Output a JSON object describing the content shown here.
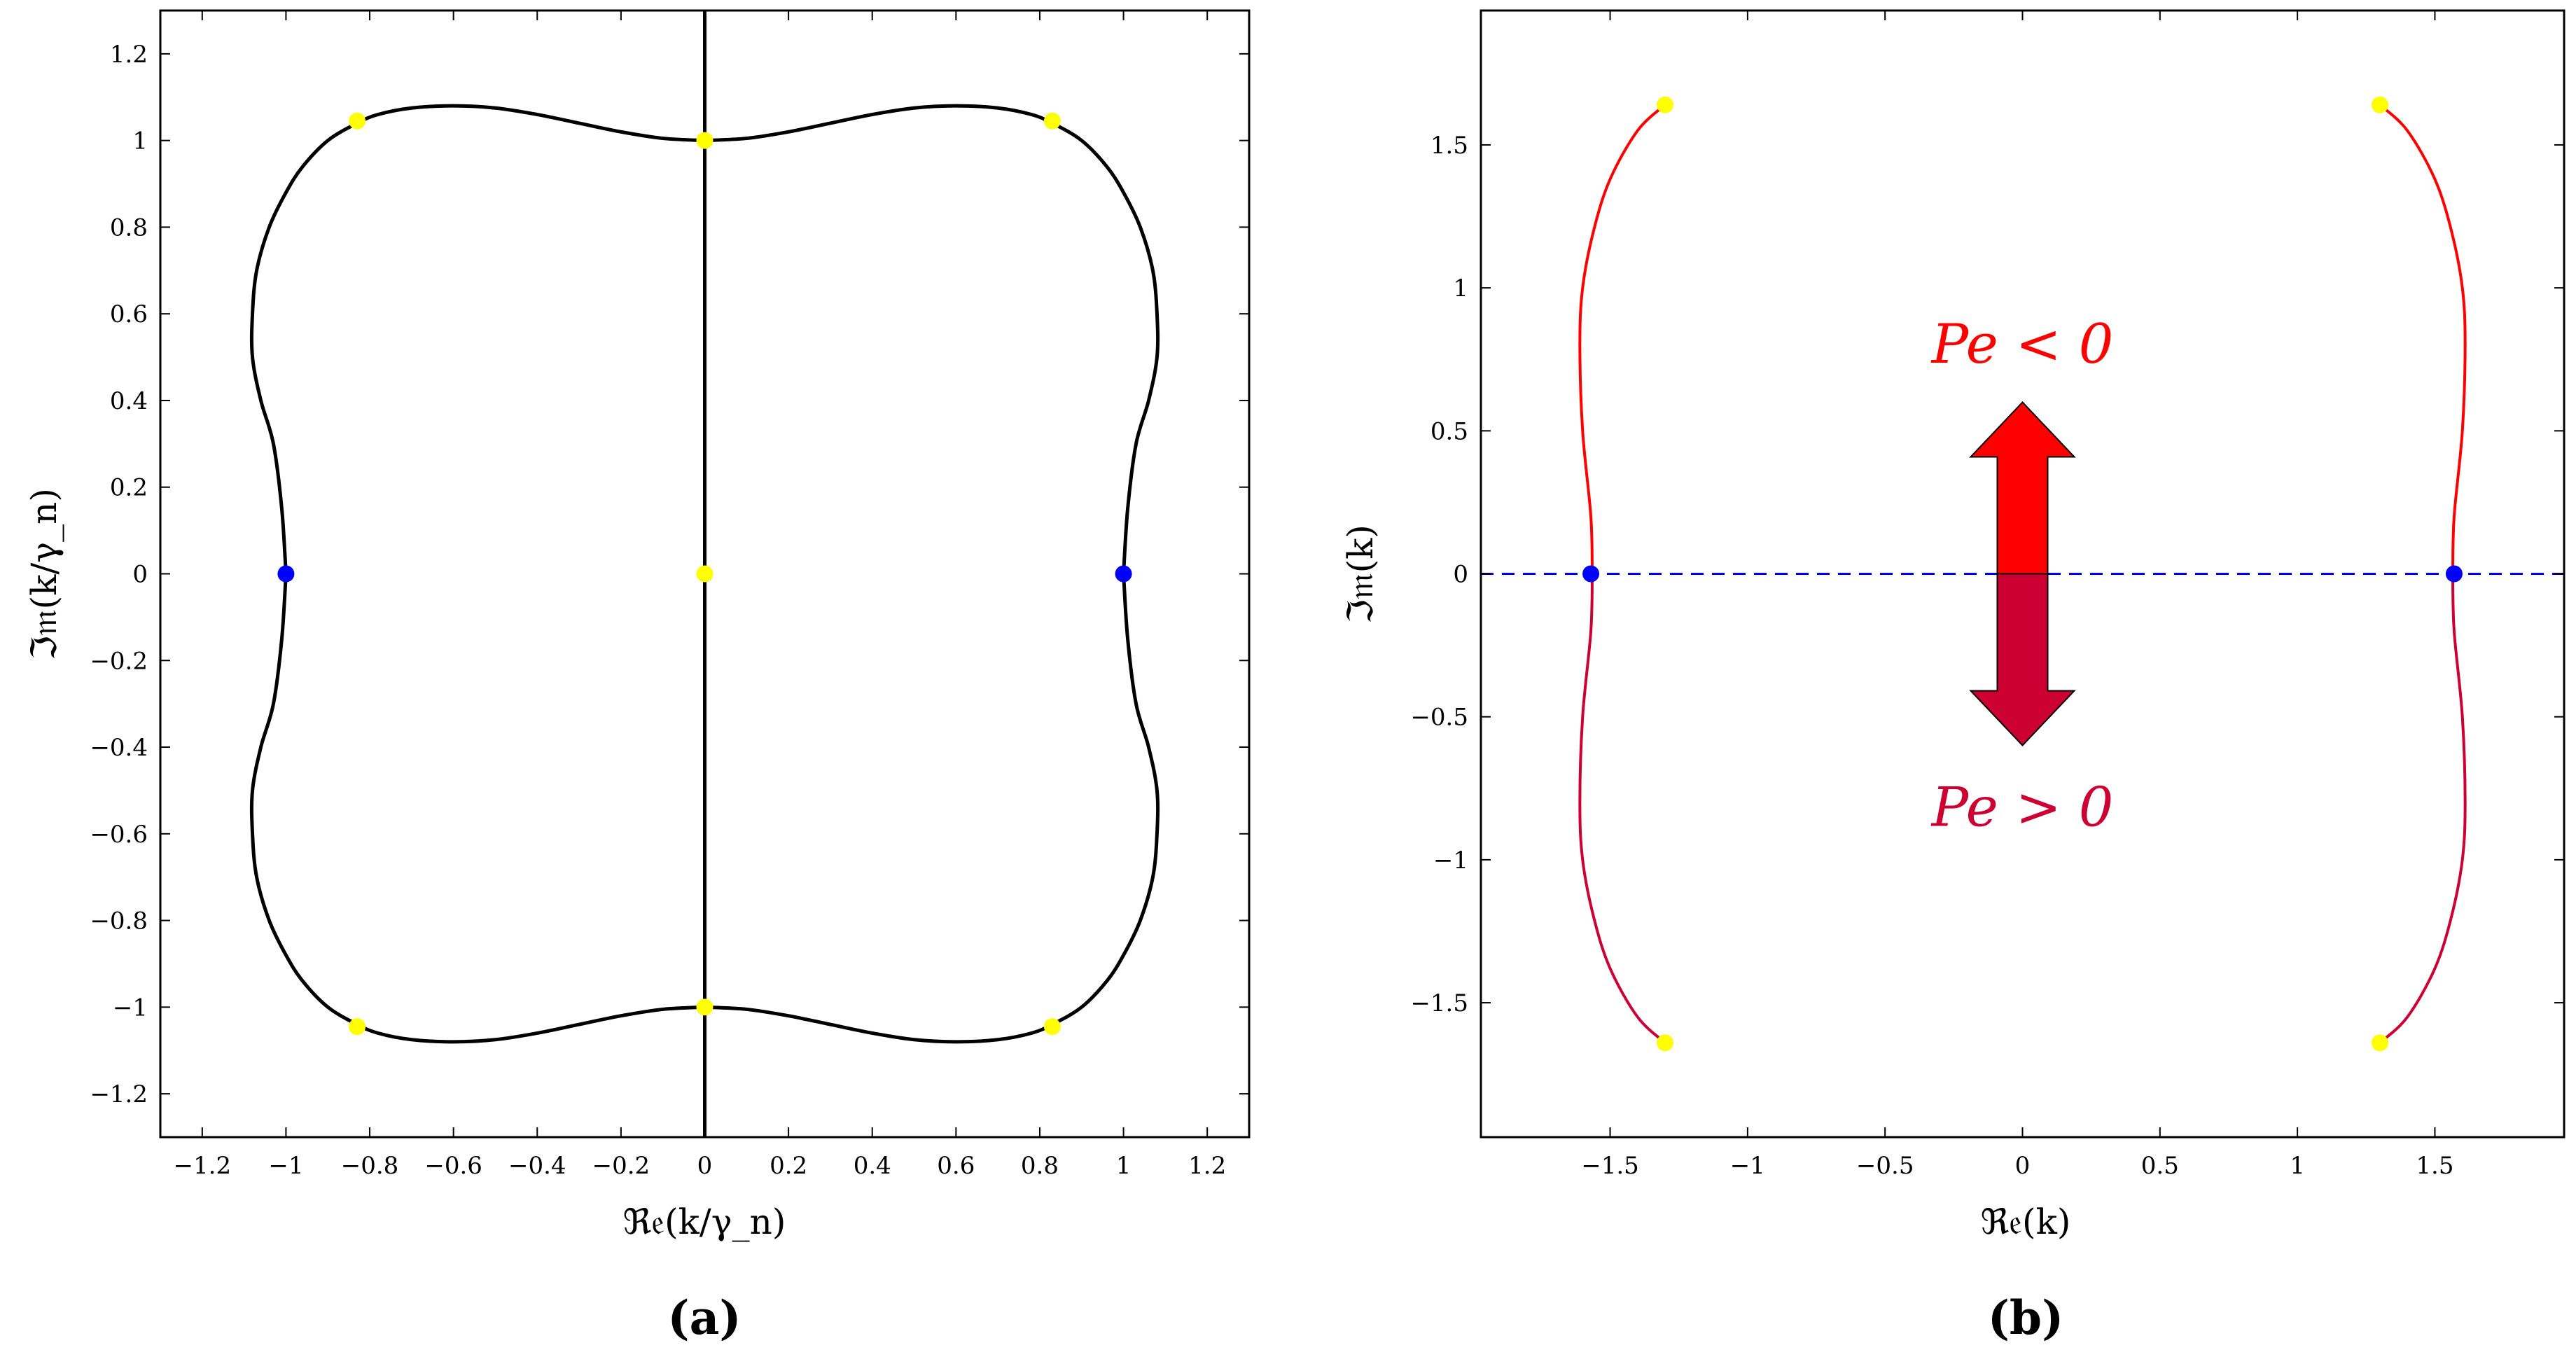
{
  "chart_data": [
    {
      "type": "line",
      "panel": "(a)",
      "xlabel": "ℜ𝔢(k/γ_n)",
      "ylabel": "ℑ𝔪(k/γ_n)",
      "xlim": [
        -1.3,
        1.3
      ],
      "ylim": [
        -1.3,
        1.3
      ],
      "xticks": [
        -1.2,
        -1,
        -0.8,
        -0.6,
        -0.4,
        -0.2,
        0,
        0.2,
        0.4,
        0.6,
        0.8,
        1,
        1.2
      ],
      "xtick_labels": [
        "−1.2",
        "−1",
        "−0.8",
        "−0.6",
        "−0.4",
        "−0.2",
        "0",
        "0.2",
        "0.4",
        "0.6",
        "0.8",
        "1",
        "1.2"
      ],
      "yticks": [
        1.2,
        1,
        0.8,
        0.6,
        0.4,
        0.2,
        0,
        -0.2,
        -0.4,
        -0.6,
        -0.8,
        -1,
        -1.2
      ],
      "ytick_labels": [
        "1.2",
        "1",
        "0.8",
        "0.6",
        "0.4",
        "0.2",
        "0",
        "−0.2",
        "−0.4",
        "−0.6",
        "−0.8",
        "−1",
        "−1.2"
      ],
      "series": [
        {
          "name": "closed-curve-upper-right",
          "color": "#000000",
          "x": [
            0,
            0.1,
            0.2,
            0.3,
            0.4,
            0.5,
            0.6,
            0.7,
            0.78,
            0.83,
            0.9,
            0.96,
            1.0,
            1.04,
            1.07,
            1.08,
            1.08,
            1.06,
            1.03,
            1.01,
            1.0
          ],
          "y": [
            1.0,
            1.005,
            1.02,
            1.04,
            1.06,
            1.075,
            1.08,
            1.075,
            1.06,
            1.04,
            1.0,
            0.94,
            0.88,
            0.8,
            0.7,
            0.6,
            0.5,
            0.4,
            0.3,
            0.15,
            0.0
          ]
        },
        {
          "name": "imaginary-axis-line",
          "color": "#000000",
          "x": [
            0,
            0
          ],
          "y": [
            -1.3,
            1.3
          ]
        }
      ],
      "points": [
        {
          "x": -1,
          "y": 0,
          "color": "#0000ff"
        },
        {
          "x": 1,
          "y": 0,
          "color": "#0000ff"
        },
        {
          "x": 0,
          "y": 0,
          "color": "#ffff00"
        },
        {
          "x": 0,
          "y": 1,
          "color": "#ffff00"
        },
        {
          "x": 0,
          "y": -1,
          "color": "#ffff00"
        },
        {
          "x": -0.83,
          "y": 1.045,
          "color": "#ffff00"
        },
        {
          "x": 0.83,
          "y": 1.045,
          "color": "#ffff00"
        },
        {
          "x": -0.83,
          "y": -1.045,
          "color": "#ffff00"
        },
        {
          "x": 0.83,
          "y": -1.045,
          "color": "#ffff00"
        }
      ]
    },
    {
      "type": "line",
      "panel": "(b)",
      "xlabel": "ℜ𝔢(k)",
      "ylabel": "ℑ𝔪(k)",
      "xlim": [
        -1.97,
        1.97
      ],
      "ylim": [
        -1.97,
        1.97
      ],
      "xticks": [
        -1.5,
        -1,
        -0.5,
        0,
        0.5,
        1,
        1.5
      ],
      "xtick_labels": [
        "−1.5",
        "−1",
        "−0.5",
        "0",
        "0.5",
        "1",
        "1.5"
      ],
      "yticks": [
        1.5,
        1,
        0.5,
        0,
        -0.5,
        -1,
        -1.5
      ],
      "ytick_labels": [
        "1.5",
        "1",
        "0.5",
        "0",
        "−0.5",
        "−1",
        "−1.5"
      ],
      "series": [
        {
          "name": "upper-branch",
          "color": "#ff0000",
          "x": [
            1.3,
            1.4,
            1.5,
            1.56,
            1.6,
            1.61,
            1.6,
            1.57,
            1.565
          ],
          "y": [
            1.64,
            1.55,
            1.38,
            1.2,
            1.0,
            0.8,
            0.5,
            0.2,
            0.0
          ]
        },
        {
          "name": "lower-branch",
          "color": "#cc0033",
          "x": [
            1.565,
            1.57,
            1.6,
            1.61,
            1.6,
            1.56,
            1.5,
            1.4,
            1.3
          ],
          "y": [
            0.0,
            -0.2,
            -0.5,
            -0.8,
            -1.0,
            -1.2,
            -1.38,
            -1.55,
            -1.64
          ]
        },
        {
          "name": "real-axis-dashed",
          "color": "#0000ff",
          "x": [
            -1.97,
            1.97
          ],
          "y": [
            0,
            0
          ]
        }
      ],
      "points": [
        {
          "x": -1.57,
          "y": 0,
          "color": "#0000ff"
        },
        {
          "x": 1.57,
          "y": 0,
          "color": "#0000ff"
        },
        {
          "x": -1.3,
          "y": 1.64,
          "color": "#ffff00"
        },
        {
          "x": 1.3,
          "y": 1.64,
          "color": "#ffff00"
        },
        {
          "x": -1.3,
          "y": -1.64,
          "color": "#ffff00"
        },
        {
          "x": 1.3,
          "y": -1.64,
          "color": "#ffff00"
        }
      ],
      "annotations": [
        {
          "text": "Pe < 0",
          "x": 0,
          "y": 0.8,
          "color": "#ff0000"
        },
        {
          "text": "Pe > 0",
          "x": 0,
          "y": -0.82,
          "color": "#cc0033"
        }
      ],
      "arrow": {
        "y_top": 0.6,
        "y_bottom": -0.6,
        "upper_color": "#ff0000",
        "lower_color": "#cc0033"
      }
    }
  ],
  "panel_labels": {
    "a": "(a)",
    "b": "(b)"
  }
}
